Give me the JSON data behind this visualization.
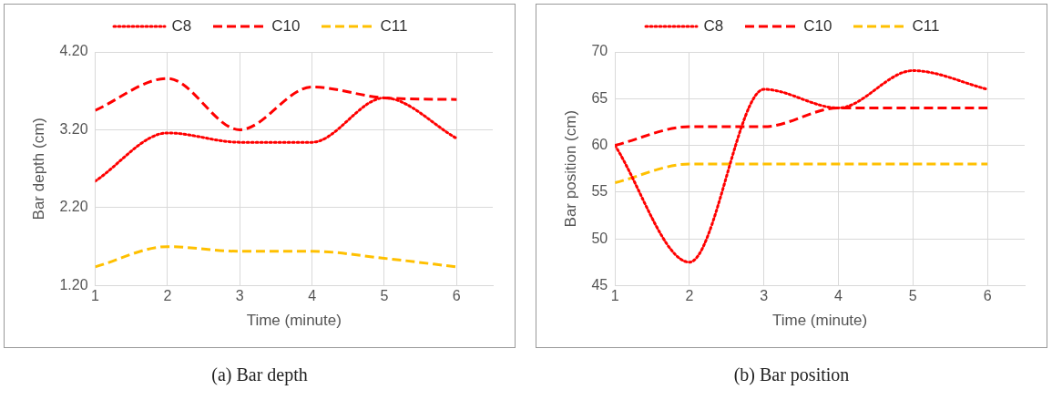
{
  "chart_data": [
    {
      "type": "line",
      "title": "(a)  Bar depth",
      "xlabel": "Time (minute)",
      "ylabel": "Bar depth (cm)",
      "x": [
        1,
        2,
        3,
        4,
        5,
        6
      ],
      "xlim": [
        1,
        6.5
      ],
      "xticks": [
        1,
        2,
        3,
        4,
        5,
        6
      ],
      "ylim": [
        1.2,
        4.2
      ],
      "yticks": [
        {
          "value": 1.2,
          "label": "1.20"
        },
        {
          "value": 2.2,
          "label": "2.20"
        },
        {
          "value": 3.2,
          "label": "3.20"
        },
        {
          "value": 4.2,
          "label": "4.20"
        }
      ],
      "grid": true,
      "legend": "top",
      "marker": "none",
      "series": [
        {
          "name": "C8",
          "color": "#ff0000",
          "line_style": "dotted",
          "values": [
            2.54,
            3.16,
            3.04,
            3.04,
            3.61,
            3.09
          ]
        },
        {
          "name": "C10",
          "color": "#ff0000",
          "line_style": "dashed",
          "values": [
            3.45,
            3.86,
            3.2,
            3.75,
            3.61,
            3.59
          ]
        },
        {
          "name": "C11",
          "color": "#ffc000",
          "line_style": "dashed",
          "values": [
            1.44,
            1.7,
            1.64,
            1.64,
            1.55,
            1.44
          ]
        }
      ]
    },
    {
      "type": "line",
      "title": "(b)  Bar position",
      "xlabel": "Time (minute)",
      "ylabel": "Bar position (cm)",
      "x": [
        1,
        2,
        3,
        4,
        5,
        6
      ],
      "xlim": [
        1,
        6.5
      ],
      "xticks": [
        1,
        2,
        3,
        4,
        5,
        6
      ],
      "ylim": [
        45,
        70
      ],
      "yticks": [
        45,
        50,
        55,
        60,
        65,
        70
      ],
      "grid": true,
      "legend": "top",
      "marker": "none",
      "series": [
        {
          "name": "C8",
          "color": "#ff0000",
          "line_style": "dotted",
          "values": [
            60,
            47.5,
            66,
            64,
            68,
            66
          ]
        },
        {
          "name": "C10",
          "color": "#ff0000",
          "line_style": "dashed",
          "values": [
            60,
            62,
            62,
            64,
            64,
            64
          ]
        },
        {
          "name": "C11",
          "color": "#ffc000",
          "line_style": "dashed",
          "values": [
            56,
            58,
            58,
            58,
            58,
            58
          ]
        }
      ]
    }
  ]
}
